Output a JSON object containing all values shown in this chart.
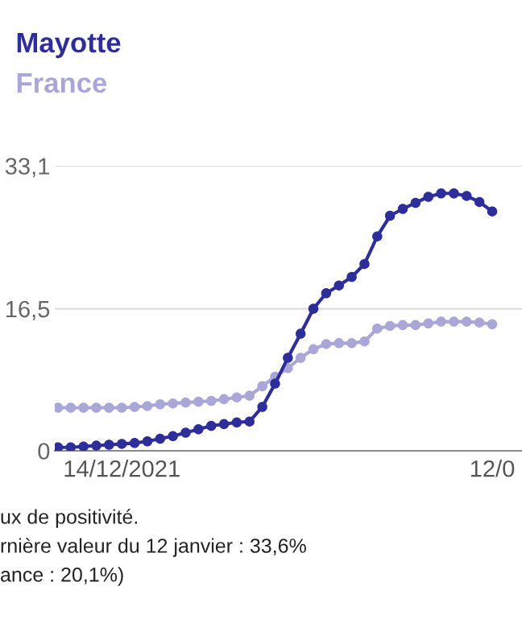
{
  "chart_data": {
    "type": "line",
    "x": [
      "2021-12-09",
      "2021-12-10",
      "2021-12-11",
      "2021-12-12",
      "2021-12-13",
      "2021-12-14",
      "2021-12-15",
      "2021-12-16",
      "2021-12-17",
      "2021-12-18",
      "2021-12-19",
      "2021-12-20",
      "2021-12-21",
      "2021-12-22",
      "2021-12-23",
      "2021-12-24",
      "2021-12-25",
      "2021-12-26",
      "2021-12-27",
      "2021-12-28",
      "2021-12-29",
      "2021-12-30",
      "2021-12-31",
      "2022-01-01",
      "2022-01-02",
      "2022-01-03",
      "2022-01-04",
      "2022-01-05",
      "2022-01-06",
      "2022-01-07",
      "2022-01-08",
      "2022-01-09",
      "2022-01-10",
      "2022-01-11",
      "2022-01-12"
    ],
    "series": [
      {
        "name": "Mayotte",
        "color": "#2e2e9a",
        "values": [
          0.4,
          0.4,
          0.5,
          0.6,
          0.7,
          0.8,
          0.9,
          1.1,
          1.4,
          1.7,
          2.1,
          2.5,
          2.9,
          3.1,
          3.3,
          3.4,
          5.1,
          7.8,
          10.8,
          13.6,
          16.5,
          18.3,
          19.2,
          20.2,
          21.7,
          24.9,
          27.3,
          28.1,
          28.8,
          29.5,
          29.9,
          29.9,
          29.6,
          28.9,
          27.8
        ]
      },
      {
        "name": "France",
        "color": "#a9a6d8",
        "values": [
          5.0,
          5.0,
          5.0,
          5.0,
          5.0,
          5.0,
          5.1,
          5.2,
          5.4,
          5.5,
          5.6,
          5.7,
          5.8,
          6.0,
          6.2,
          6.4,
          7.5,
          8.6,
          9.6,
          10.8,
          11.8,
          12.4,
          12.5,
          12.5,
          12.7,
          14.2,
          14.5,
          14.6,
          14.6,
          14.8,
          15.0,
          15.0,
          15.0,
          14.9,
          14.7
        ]
      }
    ],
    "xlim": [
      "2021-12-08T18:00",
      "2022-01-14T08:00"
    ],
    "xticks": [
      {
        "value": "2021-12-14",
        "label": "14/12/2021"
      },
      {
        "value": "2022-01-12",
        "label": "12/0"
      }
    ],
    "ylim": [
      0,
      33.1
    ],
    "yticks": [
      0,
      {
        "value": 16.5,
        "label": "16,5"
      },
      {
        "value": 33.1,
        "label": "33,1"
      }
    ],
    "grid": "y",
    "marker": "circle",
    "line_style": "solid",
    "legend": "top left",
    "annotations": [
      "ux de positivité.",
      "rnière valeur du 12 janvier : 33,6%",
      "ance : 20,1%)"
    ]
  }
}
